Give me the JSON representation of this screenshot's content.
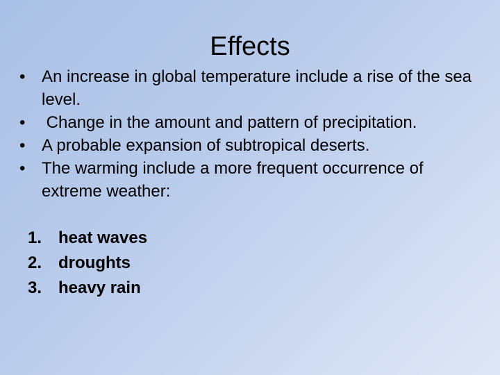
{
  "slide": {
    "title": "Effects",
    "bullets": [
      "An increase in global temperature include a rise of the sea level.",
      " Change in the amount and pattern of precipitation.",
      "A probable expansion of subtropical deserts.",
      "The warming include a more frequent occurrence of extreme weather:"
    ],
    "numbered": [
      {
        "num": "1.",
        "text": "heat waves"
      },
      {
        "num": "2.",
        "text": "droughts"
      },
      {
        "num": "3.",
        "text": "heavy rain"
      }
    ],
    "bullet_glyph": "•"
  }
}
